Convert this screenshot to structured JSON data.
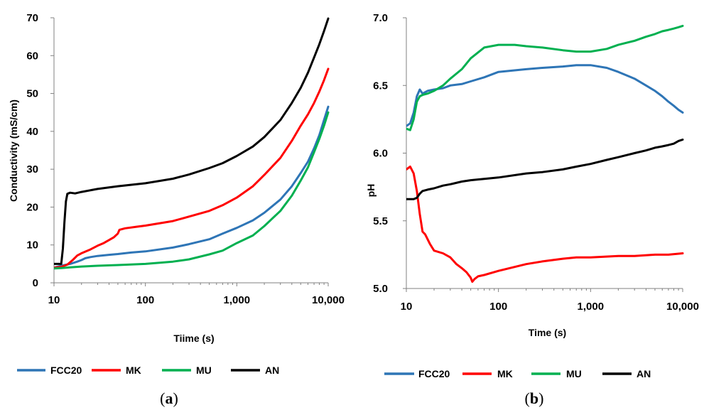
{
  "series_style": [
    {
      "name": "FCC20",
      "color": "#2E75B6"
    },
    {
      "name": "MK",
      "color": "#FF0000"
    },
    {
      "name": "MU",
      "color": "#00B050"
    },
    {
      "name": "AN",
      "color": "#000000"
    }
  ],
  "panels": [
    {
      "label_open": "(",
      "label_letter": "a",
      "label_close": ")"
    },
    {
      "label_open": "(",
      "label_letter": "b",
      "label_close": ")"
    }
  ],
  "chart_data": [
    {
      "type": "line",
      "panel": "a",
      "xlabel": "Tiime (s)",
      "ylabel": "Conductivity (mS/cm)",
      "xscale": "log",
      "xlim": [
        10,
        10000
      ],
      "ylim": [
        0,
        70
      ],
      "xticks": [
        10,
        100,
        1000,
        10000
      ],
      "xtick_labels": [
        "10",
        "100",
        "1,000",
        "10,000"
      ],
      "yticks": [
        0,
        10,
        20,
        30,
        40,
        50,
        60,
        70
      ],
      "ytick_labels": [
        "0",
        "10",
        "20",
        "30",
        "40",
        "50",
        "60",
        "70"
      ],
      "grid": false,
      "legend": "bottom",
      "series": [
        {
          "name": "FCC20",
          "x": [
            10,
            12,
            15,
            18,
            20,
            22,
            25,
            30,
            40,
            50,
            70,
            100,
            200,
            300,
            500,
            700,
            1000,
            1500,
            2000,
            3000,
            4000,
            5000,
            6000,
            7000,
            8000,
            9000,
            10000
          ],
          "y": [
            4,
            4.5,
            5.0,
            5.6,
            6.0,
            6.5,
            6.8,
            7.1,
            7.4,
            7.6,
            8.0,
            8.3,
            9.3,
            10.2,
            11.5,
            13.0,
            14.5,
            16.5,
            18.5,
            22.0,
            25.5,
            29.0,
            32.0,
            35.5,
            39.0,
            43.0,
            46.5
          ]
        },
        {
          "name": "MK",
          "x": [
            10,
            12,
            14,
            16,
            18,
            20,
            25,
            30,
            35,
            40,
            45,
            50,
            52,
            60,
            80,
            100,
            200,
            300,
            500,
            700,
            1000,
            1500,
            2000,
            3000,
            4000,
            5000,
            6000,
            7000,
            8000,
            9000,
            10000
          ],
          "y": [
            4,
            4.2,
            4.8,
            6.0,
            7.2,
            7.8,
            8.8,
            9.8,
            10.5,
            11.3,
            12.0,
            13.0,
            14.0,
            14.4,
            14.8,
            15.1,
            16.3,
            17.5,
            19.0,
            20.5,
            22.5,
            25.5,
            28.5,
            33.0,
            37.5,
            41.5,
            44.5,
            47.5,
            50.5,
            53.5,
            56.5
          ]
        },
        {
          "name": "MU",
          "x": [
            10,
            12,
            15,
            20,
            30,
            50,
            100,
            200,
            300,
            500,
            700,
            1000,
            1500,
            2000,
            3000,
            4000,
            5000,
            6000,
            7000,
            8000,
            9000,
            10000
          ],
          "y": [
            3.8,
            3.9,
            4.1,
            4.3,
            4.5,
            4.7,
            5.0,
            5.6,
            6.2,
            7.5,
            8.5,
            10.5,
            12.5,
            15.0,
            19.0,
            23.0,
            27.0,
            30.5,
            34.5,
            38.0,
            41.5,
            45.0
          ]
        },
        {
          "name": "AN",
          "x": [
            10,
            11,
            12,
            12.5,
            13,
            13.5,
            14,
            15,
            17,
            20,
            30,
            50,
            100,
            200,
            300,
            500,
            700,
            1000,
            1500,
            2000,
            3000,
            4000,
            5000,
            6000,
            7000,
            8000,
            9000,
            10000
          ],
          "y": [
            5.0,
            5.0,
            5.0,
            9.0,
            16.0,
            21.5,
            23.5,
            23.8,
            23.6,
            24.0,
            24.8,
            25.5,
            26.3,
            27.5,
            28.6,
            30.3,
            31.6,
            33.5,
            36.0,
            38.5,
            43.0,
            47.5,
            51.5,
            55.5,
            59.5,
            63.0,
            66.5,
            69.8
          ]
        }
      ]
    },
    {
      "type": "line",
      "panel": "b",
      "xlabel": "Time (s)",
      "ylabel": "pH",
      "xscale": "log",
      "xlim": [
        10,
        10000
      ],
      "ylim": [
        5.0,
        7.0
      ],
      "xticks": [
        10,
        100,
        1000,
        10000
      ],
      "xtick_labels": [
        "10",
        "100",
        "1,000",
        "10,000"
      ],
      "yticks": [
        5.0,
        5.5,
        6.0,
        6.5,
        7.0
      ],
      "ytick_labels": [
        "5.0",
        "5.5",
        "6.0",
        "6.5",
        "7.0"
      ],
      "grid": false,
      "legend": "bottom",
      "series": [
        {
          "name": "FCC20",
          "x": [
            10,
            11,
            12,
            13,
            14,
            15,
            17,
            20,
            25,
            30,
            40,
            50,
            70,
            100,
            200,
            300,
            500,
            700,
            1000,
            1500,
            2000,
            3000,
            4000,
            5000,
            6000,
            7000,
            8000,
            9000,
            10000
          ],
          "y": [
            6.2,
            6.22,
            6.3,
            6.42,
            6.47,
            6.44,
            6.46,
            6.47,
            6.48,
            6.5,
            6.51,
            6.53,
            6.56,
            6.6,
            6.62,
            6.63,
            6.64,
            6.65,
            6.65,
            6.63,
            6.6,
            6.55,
            6.5,
            6.46,
            6.42,
            6.38,
            6.35,
            6.32,
            6.3
          ]
        },
        {
          "name": "MK",
          "x": [
            10,
            11,
            12,
            13,
            14,
            15,
            16,
            18,
            20,
            25,
            30,
            35,
            40,
            45,
            50,
            52,
            55,
            60,
            70,
            100,
            200,
            300,
            500,
            700,
            1000,
            2000,
            3000,
            5000,
            7000,
            10000
          ],
          "y": [
            5.88,
            5.9,
            5.85,
            5.72,
            5.55,
            5.42,
            5.4,
            5.33,
            5.28,
            5.26,
            5.23,
            5.18,
            5.15,
            5.12,
            5.08,
            5.05,
            5.07,
            5.09,
            5.1,
            5.13,
            5.18,
            5.2,
            5.22,
            5.23,
            5.23,
            5.24,
            5.24,
            5.25,
            5.25,
            5.26
          ]
        },
        {
          "name": "MU",
          "x": [
            10,
            11,
            12,
            13,
            14,
            15,
            17,
            20,
            25,
            30,
            40,
            50,
            70,
            100,
            150,
            200,
            300,
            500,
            700,
            1000,
            1500,
            2000,
            3000,
            4000,
            5000,
            6000,
            7000,
            8000,
            9000,
            10000
          ],
          "y": [
            6.18,
            6.17,
            6.25,
            6.38,
            6.42,
            6.43,
            6.44,
            6.46,
            6.5,
            6.55,
            6.62,
            6.7,
            6.78,
            6.8,
            6.8,
            6.79,
            6.78,
            6.76,
            6.75,
            6.75,
            6.77,
            6.8,
            6.83,
            6.86,
            6.88,
            6.9,
            6.91,
            6.92,
            6.93,
            6.94
          ]
        },
        {
          "name": "AN",
          "x": [
            10,
            11,
            12,
            13,
            14,
            15,
            17,
            20,
            25,
            30,
            40,
            50,
            70,
            100,
            200,
            300,
            500,
            700,
            1000,
            1500,
            2000,
            3000,
            4000,
            5000,
            6000,
            7000,
            8000,
            9000,
            10000
          ],
          "y": [
            5.66,
            5.66,
            5.66,
            5.67,
            5.7,
            5.72,
            5.73,
            5.74,
            5.76,
            5.77,
            5.79,
            5.8,
            5.81,
            5.82,
            5.85,
            5.86,
            5.88,
            5.9,
            5.92,
            5.95,
            5.97,
            6.0,
            6.02,
            6.04,
            6.05,
            6.06,
            6.07,
            6.09,
            6.1
          ]
        }
      ]
    }
  ]
}
